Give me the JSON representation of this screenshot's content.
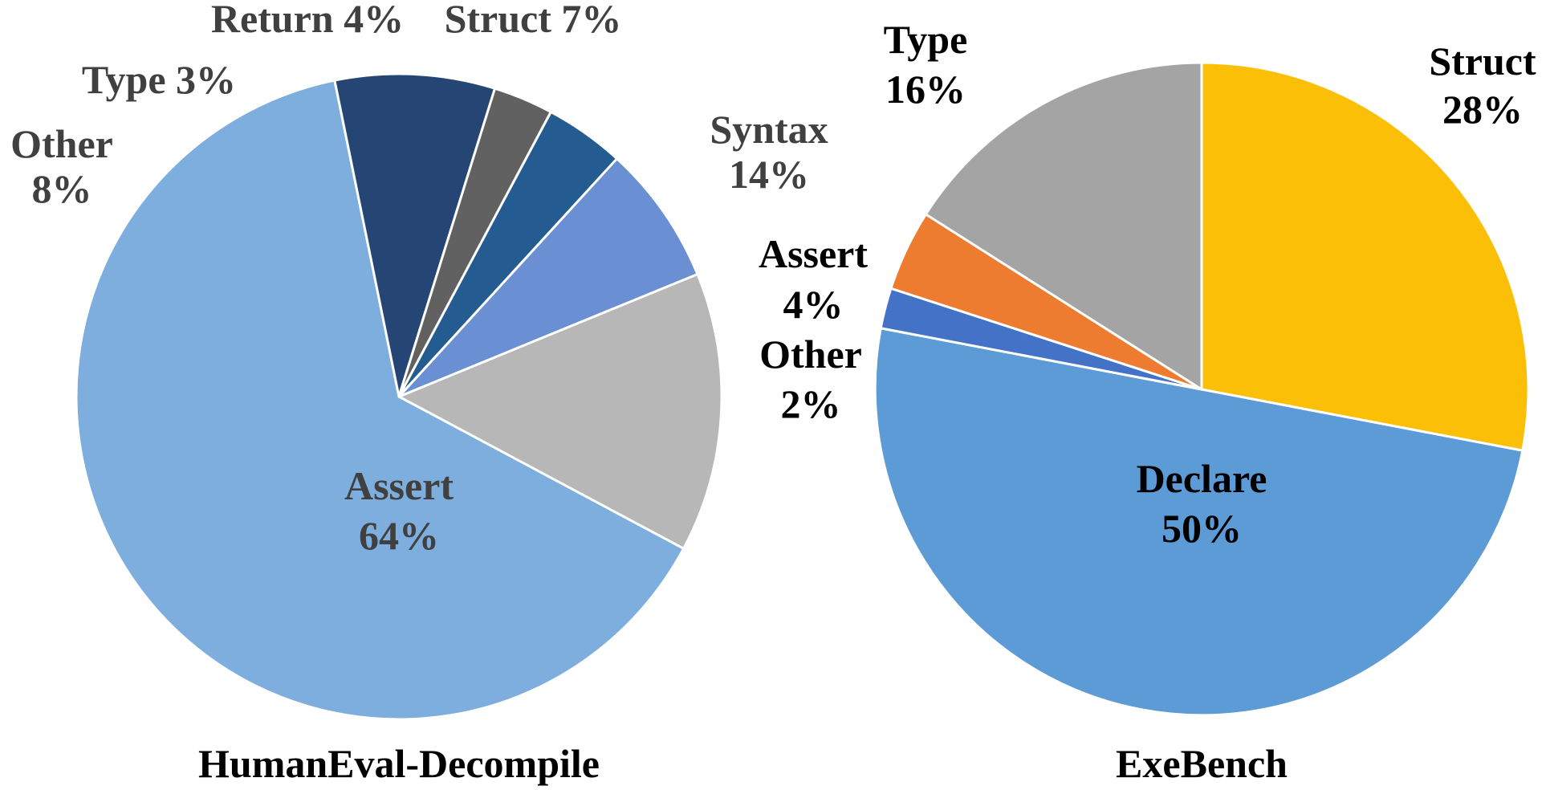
{
  "chart_data": [
    {
      "type": "pie",
      "title": "HumanEval-Decompile",
      "label_color": "#404040",
      "slices": [
        {
          "name": "Syntax",
          "value": 14,
          "color": "#B7B7B7",
          "label": "Syntax",
          "value_label": "14%"
        },
        {
          "name": "Assert",
          "value": 64,
          "color": "#7DAEDE",
          "label": "Assert",
          "value_label": "64%"
        },
        {
          "name": "Other",
          "value": 8,
          "color": "#254574",
          "label": "Other",
          "value_label": "8%"
        },
        {
          "name": "Type",
          "value": 3,
          "color": "#616161",
          "label": "Type 3%",
          "value_label": ""
        },
        {
          "name": "Return",
          "value": 4,
          "color": "#245B91",
          "label": "Return 4%",
          "value_label": ""
        },
        {
          "name": "Struct",
          "value": 7,
          "color": "#6A8FD3",
          "label": "Struct 7%",
          "value_label": ""
        }
      ]
    },
    {
      "type": "pie",
      "title": "ExeBench",
      "label_color": "#000000",
      "slices": [
        {
          "name": "Struct",
          "value": 28,
          "color": "#FCBF08",
          "label": "Struct",
          "value_label": "28%"
        },
        {
          "name": "Declare",
          "value": 50,
          "color": "#5C9BD6",
          "label": "Declare",
          "value_label": "50%"
        },
        {
          "name": "Other",
          "value": 2,
          "color": "#4472C6",
          "label": "Other",
          "value_label": "2%"
        },
        {
          "name": "Assert",
          "value": 4,
          "color": "#ED7C31",
          "label": "Assert",
          "value_label": "4%"
        },
        {
          "name": "Type",
          "value": 16,
          "color": "#A4A4A4",
          "label": "Type",
          "value_label": "16%"
        }
      ]
    }
  ]
}
